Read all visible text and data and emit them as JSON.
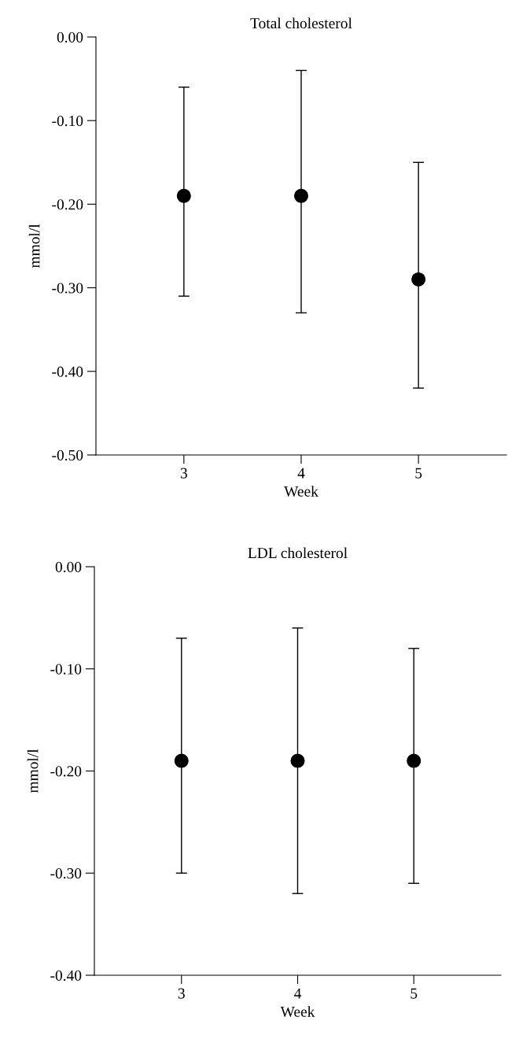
{
  "chart_data": [
    {
      "type": "scatter",
      "title": "Total cholesterol",
      "xlabel": "Week",
      "ylabel": "mmol/l",
      "x": [
        3,
        4,
        5
      ],
      "series": [
        {
          "color": "#000000",
          "values": [
            -0.19,
            -0.19,
            -0.29
          ],
          "errors": [
            [
              -0.31,
              -0.06
            ],
            [
              -0.33,
              -0.04
            ],
            [
              -0.42,
              -0.15
            ]
          ]
        }
      ],
      "marker": "circle",
      "xlim": [
        2.25,
        5.75
      ],
      "xticks": [
        3,
        4,
        5
      ],
      "ylim": [
        -0.5,
        0.0
      ],
      "yticks": [
        {
          "value": -0.5,
          "label": "-0.50"
        },
        {
          "value": -0.4,
          "label": "-0.40"
        },
        {
          "value": -0.3,
          "label": "-0.30"
        },
        {
          "value": -0.2,
          "label": "-0.20"
        },
        {
          "value": -0.1,
          "label": "-0.10"
        },
        {
          "value": 0.0,
          "label": "0.00"
        }
      ],
      "grid": false,
      "legend": false
    },
    {
      "type": "scatter",
      "title": "LDL cholesterol",
      "xlabel": "Week",
      "ylabel": "mmol/l",
      "x": [
        3,
        4,
        5
      ],
      "series": [
        {
          "color": "#000000",
          "values": [
            -0.19,
            -0.19,
            -0.19
          ],
          "errors": [
            [
              -0.3,
              -0.07
            ],
            [
              -0.32,
              -0.06
            ],
            [
              -0.31,
              -0.08
            ]
          ]
        }
      ],
      "marker": "circle",
      "xlim": [
        2.25,
        5.75
      ],
      "xticks": [
        3,
        4,
        5
      ],
      "ylim": [
        -0.4,
        0.0
      ],
      "yticks": [
        {
          "value": -0.4,
          "label": "-0.40"
        },
        {
          "value": -0.3,
          "label": "-0.30"
        },
        {
          "value": -0.2,
          "label": "-0.20"
        },
        {
          "value": -0.1,
          "label": "-0.10"
        },
        {
          "value": 0.0,
          "label": "0.00"
        }
      ],
      "grid": false,
      "legend": false
    }
  ]
}
